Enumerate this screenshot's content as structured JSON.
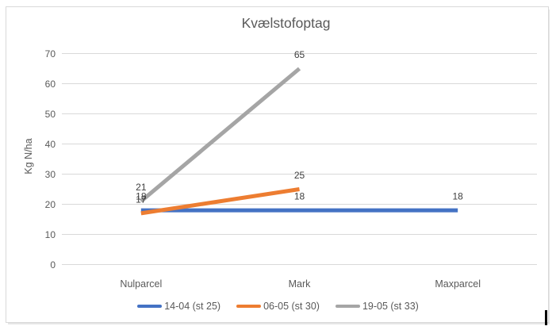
{
  "window": {
    "background": "#ffffff",
    "frame_border_color": "#d9d9d9"
  },
  "chart_data": {
    "type": "line",
    "title": "Kvælstofoptag",
    "xlabel": "",
    "ylabel": "Kg N/ha",
    "categories": [
      "Nulparcel",
      "Mark",
      "Maxparcel"
    ],
    "series": [
      {
        "name": "14-04 (st 25)",
        "color": "#4472C4",
        "values": [
          18,
          18,
          18
        ]
      },
      {
        "name": "06-05 (st 30)",
        "color": "#ED7D31",
        "values": [
          17,
          25,
          null
        ]
      },
      {
        "name": "19-05 (st 33)",
        "color": "#A5A5A5",
        "values": [
          21,
          65,
          null
        ]
      }
    ],
    "data_labels": true,
    "data_label_values": {
      "Nulparcel": [
        21,
        18,
        17
      ],
      "Mark": [
        65,
        25,
        18
      ],
      "Maxparcel": [
        18
      ]
    },
    "ylim": [
      0,
      70
    ],
    "yticks": [
      0,
      10,
      20,
      30,
      40,
      50,
      60,
      70
    ],
    "grid": true,
    "grid_color": "#d9d9d9",
    "axis_text_color": "#595959",
    "data_label_color": "#404040",
    "legend_position": "bottom"
  },
  "artifacts": {
    "text_cursor_visible": true
  }
}
